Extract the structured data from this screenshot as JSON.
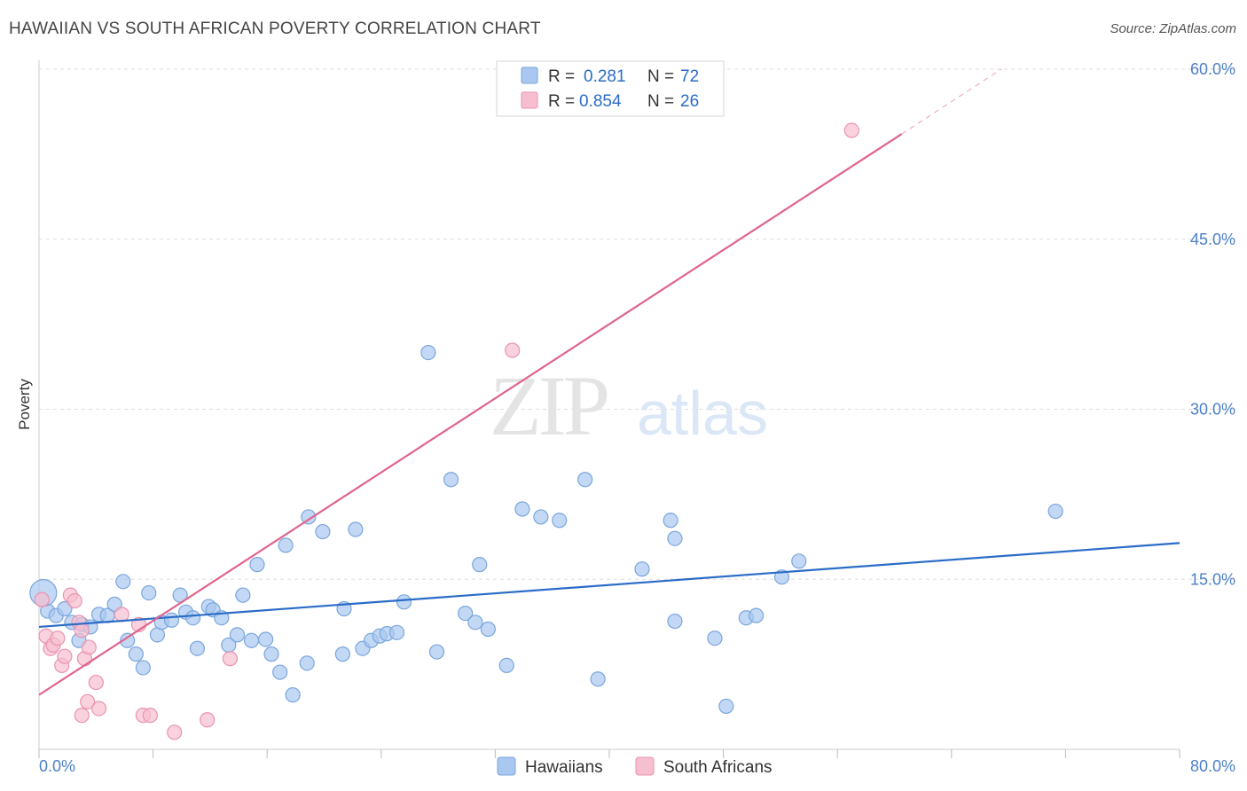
{
  "title": "HAWAIIAN VS SOUTH AFRICAN POVERTY CORRELATION CHART",
  "source": "Source: ZipAtlas.com",
  "watermark": {
    "zip": "ZIP",
    "atlas": "atlas"
  },
  "colors": {
    "blue_fill": "#a9c7ef",
    "blue_stroke": "#7aa6dd",
    "blue_line": "#2b6cc8",
    "pink_fill": "#f6bfd0",
    "pink_stroke": "#ea93b0",
    "pink_line": "#e0648c",
    "tick_label": "#4a7fc9",
    "grid": "#dddddd"
  },
  "legend_top": [
    {
      "r_label": "R =",
      "r_value": "0.281",
      "n_label": "N =",
      "n_value": "72",
      "color": "blue"
    },
    {
      "r_label": "R =",
      "r_value": "0.854",
      "n_label": "N =",
      "n_value": "26",
      "color": "pink"
    }
  ],
  "chart_data": {
    "type": "scatter",
    "ylabel": "Poverty",
    "xlim": [
      0,
      80
    ],
    "ylim": [
      0,
      60
    ],
    "x_tick_labels": {
      "min": "0.0%",
      "max": "80.0%"
    },
    "y_ticks": [
      15,
      30,
      45,
      60
    ],
    "y_tick_labels": [
      "15.0%",
      "30.0%",
      "45.0%",
      "60.0%"
    ],
    "legend": [
      "Hawaiians",
      "South Africans"
    ],
    "series": [
      {
        "name": "Hawaiians",
        "color": "blue",
        "trend": {
          "x0": 0,
          "y0": 10.8,
          "x1": 80,
          "y1": 18.2
        },
        "points": [
          [
            0.6,
            12.2
          ],
          [
            1.2,
            11.8
          ],
          [
            1.8,
            12.4
          ],
          [
            2.3,
            11.2
          ],
          [
            3.0,
            11.0
          ],
          [
            2.8,
            9.6
          ],
          [
            3.6,
            10.8
          ],
          [
            4.2,
            11.9
          ],
          [
            4.8,
            11.8
          ],
          [
            5.3,
            12.8
          ],
          [
            5.9,
            14.8
          ],
          [
            6.2,
            9.6
          ],
          [
            6.8,
            8.4
          ],
          [
            7.3,
            7.2
          ],
          [
            7.7,
            13.8
          ],
          [
            8.3,
            10.1
          ],
          [
            8.6,
            11.2
          ],
          [
            9.3,
            11.4
          ],
          [
            9.9,
            13.6
          ],
          [
            10.3,
            12.1
          ],
          [
            10.8,
            11.6
          ],
          [
            11.1,
            8.9
          ],
          [
            11.9,
            12.6
          ],
          [
            12.2,
            12.3
          ],
          [
            12.8,
            11.6
          ],
          [
            13.3,
            9.2
          ],
          [
            13.9,
            10.1
          ],
          [
            14.3,
            13.6
          ],
          [
            14.9,
            9.6
          ],
          [
            15.3,
            16.3
          ],
          [
            15.9,
            9.7
          ],
          [
            16.3,
            8.4
          ],
          [
            16.9,
            6.8
          ],
          [
            17.3,
            18.0
          ],
          [
            17.8,
            4.8
          ],
          [
            18.9,
            20.5
          ],
          [
            18.8,
            7.6
          ],
          [
            19.9,
            19.2
          ],
          [
            21.3,
            8.4
          ],
          [
            21.4,
            12.4
          ],
          [
            22.2,
            19.4
          ],
          [
            22.7,
            8.9
          ],
          [
            23.3,
            9.6
          ],
          [
            23.9,
            10.0
          ],
          [
            24.4,
            10.2
          ],
          [
            25.1,
            10.3
          ],
          [
            25.6,
            13.0
          ],
          [
            27.3,
            35.0
          ],
          [
            27.9,
            8.6
          ],
          [
            28.9,
            23.8
          ],
          [
            29.9,
            12.0
          ],
          [
            30.6,
            11.2
          ],
          [
            30.9,
            16.3
          ],
          [
            31.5,
            10.6
          ],
          [
            32.8,
            7.4
          ],
          [
            33.9,
            21.2
          ],
          [
            35.2,
            20.5
          ],
          [
            36.5,
            20.2
          ],
          [
            38.3,
            23.8
          ],
          [
            39.2,
            6.2
          ],
          [
            42.3,
            15.9
          ],
          [
            44.3,
            20.2
          ],
          [
            44.6,
            18.6
          ],
          [
            44.6,
            11.3
          ],
          [
            47.4,
            9.8
          ],
          [
            48.2,
            3.8
          ],
          [
            49.6,
            11.6
          ],
          [
            50.3,
            11.8
          ],
          [
            52.1,
            15.2
          ],
          [
            53.3,
            16.6
          ],
          [
            71.3,
            21.0
          ],
          [
            0.3,
            13.8
          ]
        ]
      },
      {
        "name": "South Africans",
        "color": "pink",
        "trend": {
          "x0": 0,
          "y0": 4.8,
          "x1": 67.5,
          "y1": 60.0,
          "solid_until_x": 60.5
        },
        "points": [
          [
            0.2,
            13.2
          ],
          [
            0.5,
            10.0
          ],
          [
            0.8,
            8.9
          ],
          [
            1.0,
            9.2
          ],
          [
            1.3,
            9.8
          ],
          [
            1.6,
            7.4
          ],
          [
            1.8,
            8.2
          ],
          [
            2.2,
            13.6
          ],
          [
            2.5,
            13.1
          ],
          [
            2.8,
            11.2
          ],
          [
            3.0,
            10.5
          ],
          [
            3.2,
            8.0
          ],
          [
            3.5,
            9.0
          ],
          [
            4.0,
            5.9
          ],
          [
            4.2,
            3.6
          ],
          [
            3.4,
            4.2
          ],
          [
            3.0,
            3.0
          ],
          [
            5.8,
            11.9
          ],
          [
            7.0,
            11.0
          ],
          [
            7.3,
            3.0
          ],
          [
            7.8,
            3.0
          ],
          [
            9.5,
            1.5
          ],
          [
            11.8,
            2.6
          ],
          [
            13.4,
            8.0
          ],
          [
            33.2,
            35.2
          ],
          [
            57.0,
            54.6
          ]
        ]
      }
    ]
  }
}
